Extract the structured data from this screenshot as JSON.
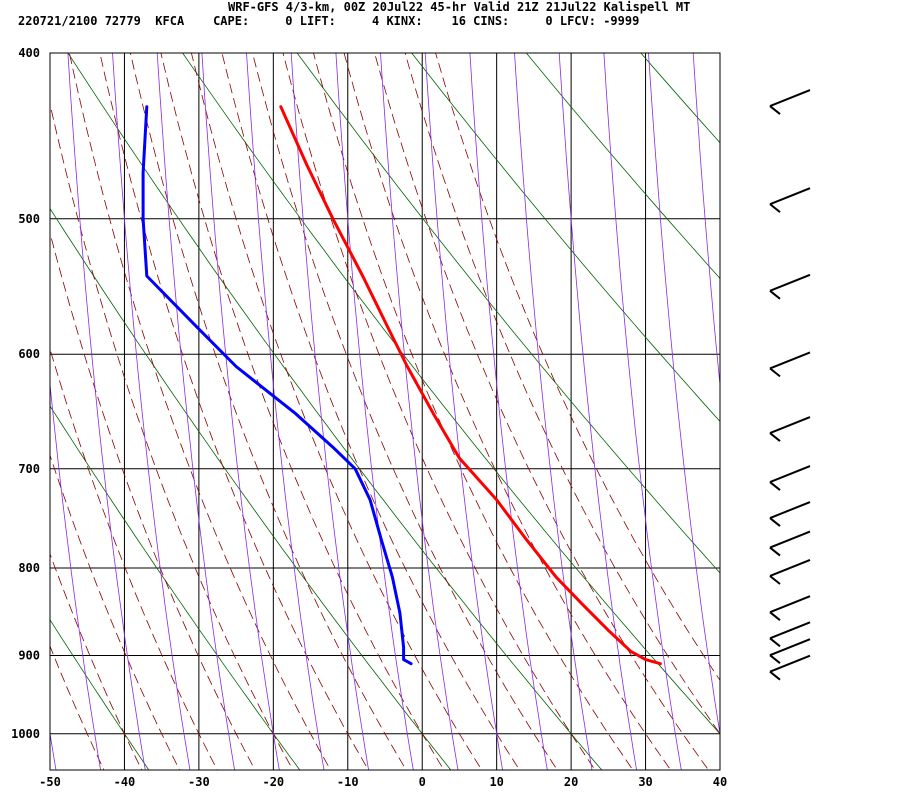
{
  "header": {
    "title": "WRF-GFS 4/3-km, 00Z 20Jul22 45-hr Valid 21Z 21Jul22 Kalispell MT",
    "info_line": "220721/2100 72779  KFCA    CAPE:     0 LIFT:     4 KINX:    16 CINS:     0 LFCV: -9999"
  },
  "chart_data": {
    "type": "line",
    "subtype": "skew-t log-p sounding",
    "title": "WRF-GFS 4/3-km, 00Z 20Jul22 45-hr Valid 21Z 21Jul22 Kalispell MT",
    "xlabel": "",
    "ylabel": "",
    "x_ticks": [
      -50,
      -40,
      -30,
      -20,
      -10,
      0,
      10,
      20,
      30,
      40
    ],
    "y_ticks": [
      400,
      500,
      600,
      700,
      800,
      900,
      1000
    ],
    "xlim": [
      -50,
      40
    ],
    "ylim": [
      1050,
      400
    ],
    "y_scale": "log",
    "grid": true,
    "series": [
      {
        "color": "#ff0000",
        "points": [
          [
            -19,
            430
          ],
          [
            -15.5,
            465
          ],
          [
            -12,
            500
          ],
          [
            -8,
            540
          ],
          [
            -4.5,
            580
          ],
          [
            -2,
            610
          ],
          [
            1.5,
            650
          ],
          [
            5,
            690
          ],
          [
            10,
            730
          ],
          [
            14,
            770
          ],
          [
            18,
            810
          ],
          [
            21.5,
            840
          ],
          [
            25,
            870
          ],
          [
            28,
            895
          ],
          [
            30,
            905
          ],
          [
            32,
            910
          ]
        ]
      },
      {
        "color": "#0000ff",
        "points": [
          [
            -37,
            430
          ],
          [
            -37.5,
            470
          ],
          [
            -37.5,
            500
          ],
          [
            -37,
            540
          ],
          [
            -30,
            580
          ],
          [
            -25,
            610
          ],
          [
            -17,
            650
          ],
          [
            -12,
            680
          ],
          [
            -9,
            700
          ],
          [
            -7,
            730
          ],
          [
            -5.5,
            770
          ],
          [
            -4,
            810
          ],
          [
            -3,
            850
          ],
          [
            -2.5,
            890
          ],
          [
            -2.5,
            905
          ],
          [
            -1.5,
            910
          ]
        ]
      }
    ],
    "wind_barbs_levels": [
      425,
      485,
      545,
      605,
      660,
      705,
      740,
      770,
      800,
      840,
      870,
      890,
      910
    ],
    "colors": {
      "isotherm": "#000000",
      "isobar": "#000000",
      "dry_adiabat": "#006400",
      "moist_adiabat": "#8b0000",
      "mixing_ratio": "#8a2be2",
      "temperature": "#ff0000",
      "dewpoint": "#0000ff"
    }
  }
}
